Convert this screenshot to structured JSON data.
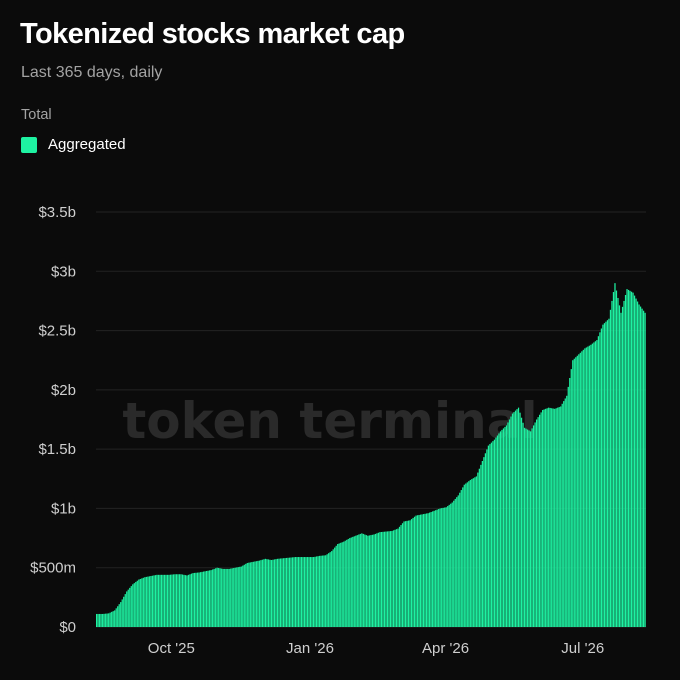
{
  "header": {
    "title": "Tokenized stocks market cap",
    "subtitle": "Last 365 days, daily"
  },
  "legend": {
    "title": "Total",
    "items": [
      {
        "label": "Aggregated",
        "color": "#1ef2a2"
      }
    ]
  },
  "watermark": "token terminal",
  "chart_data": {
    "type": "bar",
    "title": "Tokenized stocks market cap",
    "subtitle": "Last 365 days, daily",
    "xlabel": "",
    "ylabel": "",
    "grid": true,
    "legend_position": "top-left",
    "color": "#1ef2a2",
    "ylim": [
      0,
      3500000000
    ],
    "y_ticks": [
      {
        "value": 0,
        "label": "$0"
      },
      {
        "value": 500000000,
        "label": "$500m"
      },
      {
        "value": 1000000000,
        "label": "$1b"
      },
      {
        "value": 1500000000,
        "label": "$1.5b"
      },
      {
        "value": 2000000000,
        "label": "$2b"
      },
      {
        "value": 2500000000,
        "label": "$2.5b"
      },
      {
        "value": 3000000000,
        "label": "$3b"
      },
      {
        "value": 3500000000,
        "label": "$3.5b"
      }
    ],
    "x_ticks": [
      {
        "date": "2025-10-01",
        "label": "Oct '25"
      },
      {
        "date": "2026-01-01",
        "label": "Jan '26"
      },
      {
        "date": "2026-04-01",
        "label": "Apr '26"
      },
      {
        "date": "2026-07-01",
        "label": "Jul '26"
      }
    ],
    "series": [
      {
        "name": "Aggregated",
        "values": [
          [
            "2025-08-12",
            110000000
          ],
          [
            "2025-08-16",
            110000000
          ],
          [
            "2025-08-20",
            115000000
          ],
          [
            "2025-08-24",
            140000000
          ],
          [
            "2025-08-28",
            210000000
          ],
          [
            "2025-09-01",
            300000000
          ],
          [
            "2025-09-05",
            360000000
          ],
          [
            "2025-09-09",
            400000000
          ],
          [
            "2025-09-13",
            420000000
          ],
          [
            "2025-09-17",
            430000000
          ],
          [
            "2025-09-21",
            440000000
          ],
          [
            "2025-09-25",
            440000000
          ],
          [
            "2025-09-29",
            440000000
          ],
          [
            "2025-10-03",
            445000000
          ],
          [
            "2025-10-07",
            445000000
          ],
          [
            "2025-10-11",
            435000000
          ],
          [
            "2025-10-15",
            455000000
          ],
          [
            "2025-10-19",
            460000000
          ],
          [
            "2025-10-23",
            470000000
          ],
          [
            "2025-10-27",
            480000000
          ],
          [
            "2025-10-31",
            500000000
          ],
          [
            "2025-11-04",
            490000000
          ],
          [
            "2025-11-08",
            490000000
          ],
          [
            "2025-11-12",
            500000000
          ],
          [
            "2025-11-16",
            510000000
          ],
          [
            "2025-11-20",
            540000000
          ],
          [
            "2025-11-24",
            550000000
          ],
          [
            "2025-11-28",
            560000000
          ],
          [
            "2025-12-02",
            575000000
          ],
          [
            "2025-12-06",
            565000000
          ],
          [
            "2025-12-10",
            575000000
          ],
          [
            "2025-12-14",
            580000000
          ],
          [
            "2025-12-18",
            585000000
          ],
          [
            "2025-12-22",
            590000000
          ],
          [
            "2025-12-26",
            590000000
          ],
          [
            "2025-12-30",
            590000000
          ],
          [
            "2026-01-03",
            590000000
          ],
          [
            "2026-01-07",
            600000000
          ],
          [
            "2026-01-11",
            605000000
          ],
          [
            "2026-01-15",
            640000000
          ],
          [
            "2026-01-19",
            700000000
          ],
          [
            "2026-01-23",
            720000000
          ],
          [
            "2026-01-27",
            750000000
          ],
          [
            "2026-01-31",
            770000000
          ],
          [
            "2026-02-04",
            790000000
          ],
          [
            "2026-02-08",
            770000000
          ],
          [
            "2026-02-12",
            780000000
          ],
          [
            "2026-02-16",
            800000000
          ],
          [
            "2026-02-20",
            805000000
          ],
          [
            "2026-02-24",
            810000000
          ],
          [
            "2026-02-28",
            830000000
          ],
          [
            "2026-03-04",
            890000000
          ],
          [
            "2026-03-08",
            900000000
          ],
          [
            "2026-03-12",
            940000000
          ],
          [
            "2026-03-16",
            950000000
          ],
          [
            "2026-03-20",
            960000000
          ],
          [
            "2026-03-24",
            980000000
          ],
          [
            "2026-03-28",
            1000000000
          ],
          [
            "2026-04-01",
            1010000000
          ],
          [
            "2026-04-05",
            1050000000
          ],
          [
            "2026-04-09",
            1110000000
          ],
          [
            "2026-04-13",
            1200000000
          ],
          [
            "2026-04-17",
            1240000000
          ],
          [
            "2026-04-21",
            1270000000
          ],
          [
            "2026-04-25",
            1400000000
          ],
          [
            "2026-04-29",
            1530000000
          ],
          [
            "2026-05-03",
            1580000000
          ],
          [
            "2026-05-07",
            1650000000
          ],
          [
            "2026-05-11",
            1700000000
          ],
          [
            "2026-05-15",
            1800000000
          ],
          [
            "2026-05-19",
            1850000000
          ],
          [
            "2026-05-23",
            1680000000
          ],
          [
            "2026-05-27",
            1650000000
          ],
          [
            "2026-05-31",
            1750000000
          ],
          [
            "2026-06-04",
            1830000000
          ],
          [
            "2026-06-08",
            1850000000
          ],
          [
            "2026-06-12",
            1840000000
          ],
          [
            "2026-06-16",
            1860000000
          ],
          [
            "2026-06-20",
            1950000000
          ],
          [
            "2026-06-24",
            2250000000
          ],
          [
            "2026-06-28",
            2300000000
          ],
          [
            "2026-07-02",
            2350000000
          ],
          [
            "2026-07-06",
            2380000000
          ],
          [
            "2026-07-10",
            2420000000
          ],
          [
            "2026-07-14",
            2550000000
          ],
          [
            "2026-07-18",
            2600000000
          ],
          [
            "2026-07-22",
            2900000000
          ],
          [
            "2026-07-26",
            2650000000
          ],
          [
            "2026-07-30",
            2850000000
          ],
          [
            "2026-08-03",
            2820000000
          ],
          [
            "2026-08-07",
            2720000000
          ],
          [
            "2026-08-11",
            2650000000
          ]
        ]
      }
    ]
  }
}
